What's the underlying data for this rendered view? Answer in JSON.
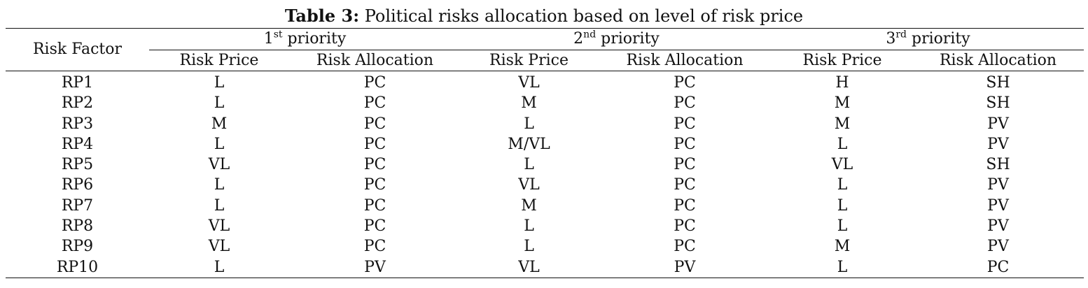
{
  "caption": {
    "label": "Table 3:",
    "text": " Political risks allocation based on level of risk price"
  },
  "header": {
    "factor": "Risk Factor",
    "groups": [
      {
        "num": "1",
        "sup": "st",
        "rest": " priority"
      },
      {
        "num": "2",
        "sup": "nd",
        "rest": " priority"
      },
      {
        "num": "3",
        "sup": "rd",
        "rest": " priority"
      }
    ],
    "sub": [
      "Risk Price",
      "Risk Allocation",
      "Risk Price",
      "Risk Allocation",
      "Risk Price",
      "Risk Allocation"
    ]
  },
  "rows": [
    [
      "RP1",
      "L",
      "PC",
      "VL",
      "PC",
      "H",
      "SH"
    ],
    [
      "RP2",
      "L",
      "PC",
      "M",
      "PC",
      "M",
      "SH"
    ],
    [
      "RP3",
      "M",
      "PC",
      "L",
      "PC",
      "M",
      "PV"
    ],
    [
      "RP4",
      "L",
      "PC",
      "M/VL",
      "PC",
      "L",
      "PV"
    ],
    [
      "RP5",
      "VL",
      "PC",
      "L",
      "PC",
      "VL",
      "SH"
    ],
    [
      "RP6",
      "L",
      "PC",
      "VL",
      "PC",
      "L",
      "PV"
    ],
    [
      "RP7",
      "L",
      "PC",
      "M",
      "PC",
      "L",
      "PV"
    ],
    [
      "RP8",
      "VL",
      "PC",
      "L",
      "PC",
      "L",
      "PV"
    ],
    [
      "RP9",
      "VL",
      "PC",
      "L",
      "PC",
      "M",
      "PV"
    ],
    [
      "RP10",
      "L",
      "PV",
      "VL",
      "PV",
      "L",
      "PC"
    ]
  ]
}
